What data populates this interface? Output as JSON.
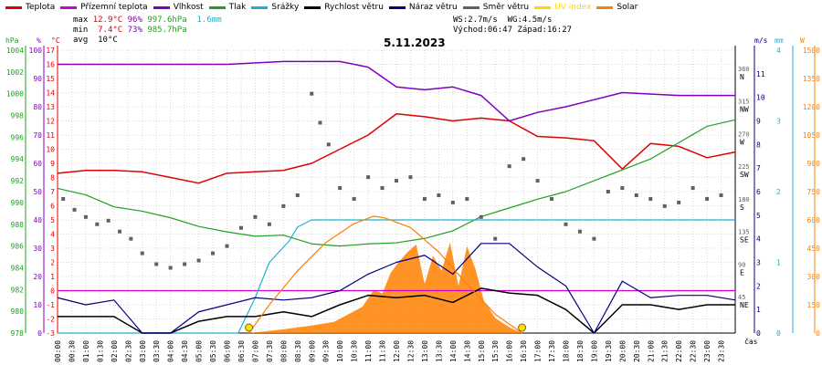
{
  "legend": [
    {
      "label": "Teplota",
      "color": "#e00000"
    },
    {
      "label": "Přízemní teplota",
      "color": "#d000d0"
    },
    {
      "label": "Vlhkost",
      "color": "#8000c0"
    },
    {
      "label": "Tlak",
      "color": "#20a020"
    },
    {
      "label": "Srážky",
      "color": "#20b0d0"
    },
    {
      "label": "Rychlost větru",
      "color": "#000000"
    },
    {
      "label": "Náraz větru",
      "color": "#000080"
    },
    {
      "label": "Směr větru",
      "color": "#606060"
    },
    {
      "label": "UV index",
      "color": "#ffd700"
    },
    {
      "label": "Solar",
      "color": "#ff8000"
    }
  ],
  "stats": {
    "max_label": "max",
    "max_temp": "12.9°C",
    "max_hum": "96%",
    "max_press": "997.6hPa",
    "max_rain": "1.6mm",
    "min_label": "min",
    "min_temp": "7.4°C",
    "min_hum": "73%",
    "min_press": "985.7hPa",
    "avg_label": "avg",
    "avg_temp": "10°C",
    "ws": "WS:2.7m/s",
    "wg": "WG:4.5m/s",
    "sunrise": "Východ:06:47",
    "sunset": "Západ:16:27"
  },
  "axis_units": {
    "hpa": "hPa",
    "pct": "%",
    "degc": "°C",
    "ms": "m/s",
    "mm": "mm",
    "w": "W",
    "cas": "čas"
  },
  "chart_data": {
    "type": "line",
    "title": "5.11.2023",
    "x_ticks": [
      "00:00",
      "00:30",
      "01:00",
      "01:30",
      "02:00",
      "02:30",
      "03:00",
      "03:30",
      "04:00",
      "04:30",
      "05:00",
      "05:30",
      "06:00",
      "06:30",
      "07:00",
      "07:30",
      "08:00",
      "08:30",
      "09:00",
      "09:30",
      "10:00",
      "10:30",
      "11:00",
      "11:30",
      "12:00",
      "12:30",
      "13:00",
      "13:30",
      "14:00",
      "14:30",
      "15:00",
      "15:30",
      "16:00",
      "16:30",
      "17:00",
      "17:30",
      "18:00",
      "18:30",
      "19:00",
      "19:30",
      "20:00",
      "20:30",
      "21:00",
      "21:30",
      "22:00",
      "22:30",
      "23:00",
      "23:30"
    ],
    "axes": {
      "temperature_c": {
        "range": [
          -3,
          17
        ],
        "ticks": [
          -3,
          -2,
          -1,
          0,
          1,
          2,
          3,
          4,
          5,
          6,
          7,
          8,
          9,
          10,
          11,
          12,
          13,
          14,
          15,
          16,
          17
        ]
      },
      "pressure_hpa": {
        "range": [
          978,
          1004
        ],
        "ticks": [
          978,
          980,
          982,
          984,
          986,
          988,
          990,
          992,
          994,
          996,
          998,
          1000,
          1002,
          1004
        ]
      },
      "humidity_pct": {
        "range": [
          0,
          100
        ],
        "ticks": [
          0,
          10,
          20,
          30,
          40,
          50,
          60,
          70,
          80,
          90,
          100
        ]
      },
      "wind_ms": {
        "range": [
          0,
          12
        ],
        "ticks": [
          0,
          1,
          2,
          3,
          4,
          5,
          6,
          7,
          8,
          9,
          10,
          11
        ]
      },
      "direction": {
        "ticks": [
          {
            "deg": 360,
            "label": "N"
          },
          {
            "deg": 315,
            "label": "NW"
          },
          {
            "deg": 270,
            "label": "W"
          },
          {
            "deg": 225,
            "label": "SW"
          },
          {
            "deg": 180,
            "label": "S"
          },
          {
            "deg": 135,
            "label": "SE"
          },
          {
            "deg": 90,
            "label": "E"
          },
          {
            "deg": 45,
            "label": "NE"
          }
        ]
      },
      "rain_mm": {
        "range": [
          0,
          4
        ],
        "ticks": [
          0,
          1,
          2,
          3,
          4
        ]
      },
      "solar_w": {
        "range": [
          0,
          1500
        ],
        "ticks": [
          0,
          150,
          300,
          450,
          600,
          750,
          900,
          1050,
          1200,
          1350,
          1500
        ]
      }
    },
    "series": [
      {
        "name": "Teplota",
        "axis": "temperature_c",
        "color": "#e00000",
        "x": [
          0,
          1,
          2,
          3,
          4,
          5,
          6,
          7,
          8,
          9,
          10,
          11,
          12,
          13,
          14,
          15,
          16,
          17,
          18,
          19,
          20,
          21,
          22,
          23,
          24
        ],
        "values": [
          8.3,
          8.5,
          8.5,
          8.4,
          8.0,
          7.6,
          8.3,
          8.4,
          8.5,
          9.0,
          10.0,
          11.0,
          12.5,
          12.3,
          12.0,
          12.2,
          12.0,
          10.9,
          10.8,
          10.6,
          8.6,
          10.4,
          10.2,
          9.4,
          9.8
        ]
      },
      {
        "name": "Přízemní teplota",
        "axis": "temperature_c",
        "color": "#d000d0",
        "x": [
          0,
          24
        ],
        "values": [
          0,
          0
        ]
      },
      {
        "name": "Vlhkost",
        "axis": "humidity_pct",
        "color": "#8000c0",
        "x": [
          0,
          2,
          4,
          6,
          8,
          10,
          11,
          12,
          13,
          14,
          15,
          16,
          17,
          18,
          20,
          22,
          24
        ],
        "values": [
          95,
          95,
          95,
          95,
          96,
          96,
          94,
          87,
          86,
          87,
          84,
          75,
          78,
          80,
          85,
          84,
          84
        ]
      },
      {
        "name": "Tlak",
        "axis": "pressure_hpa",
        "color": "#20a020",
        "x": [
          0,
          1,
          2,
          3,
          4,
          5,
          6,
          7,
          8,
          9,
          10,
          11,
          12,
          13,
          14,
          15,
          16,
          17,
          18,
          19,
          20,
          21,
          22,
          23,
          24
        ],
        "values": [
          991.3,
          990.7,
          989.6,
          989.2,
          988.6,
          987.8,
          987.3,
          986.9,
          987.0,
          986.2,
          986.0,
          986.2,
          986.3,
          986.7,
          987.4,
          988.7,
          989.5,
          990.3,
          991.0,
          992.0,
          993.0,
          994.0,
          995.5,
          997.0,
          997.6
        ]
      },
      {
        "name": "Srážky",
        "axis": "rain_mm",
        "color": "#20b0d0",
        "x": [
          0,
          6.4,
          7.0,
          7.5,
          8.2,
          8.5,
          9.0,
          24
        ],
        "values": [
          0,
          0,
          0.5,
          1.0,
          1.3,
          1.5,
          1.6,
          1.6
        ]
      },
      {
        "name": "Rychlost větru",
        "axis": "wind_ms",
        "color": "#000000",
        "x": [
          0,
          1,
          2,
          3,
          4,
          5,
          6,
          7,
          8,
          9,
          10,
          11,
          12,
          13,
          14,
          15,
          16,
          17,
          18,
          19,
          20,
          21,
          22,
          23,
          24
        ],
        "values": [
          0.7,
          0.7,
          0.7,
          0.0,
          0.0,
          0.5,
          0.7,
          0.7,
          0.9,
          0.7,
          1.2,
          1.6,
          1.5,
          1.6,
          1.3,
          1.9,
          1.7,
          1.6,
          1.0,
          0.0,
          1.2,
          1.2,
          1.0,
          1.2,
          1.2
        ]
      },
      {
        "name": "Náraz větru",
        "axis": "wind_ms",
        "color": "#000080",
        "x": [
          0,
          1,
          2,
          3,
          4,
          5,
          6,
          7,
          8,
          9,
          10,
          11,
          12,
          13,
          14,
          15,
          16,
          17,
          18,
          19,
          20,
          21,
          22,
          23,
          24
        ],
        "values": [
          1.5,
          1.2,
          1.4,
          0.0,
          0.0,
          0.9,
          1.2,
          1.5,
          1.4,
          1.5,
          1.8,
          2.5,
          3.0,
          3.3,
          2.5,
          3.8,
          3.8,
          2.8,
          2.0,
          0.0,
          2.2,
          1.5,
          1.6,
          1.6,
          1.4
        ]
      },
      {
        "name": "Směr větru",
        "axis": "direction",
        "color": "#606060",
        "type": "scatter",
        "x": [
          0.2,
          0.6,
          1.0,
          1.4,
          1.8,
          2.2,
          2.6,
          3.0,
          3.5,
          4.0,
          4.5,
          5.0,
          5.5,
          6.0,
          6.5,
          7.0,
          7.5,
          8.0,
          8.5,
          9.0,
          9.3,
          9.6,
          10.0,
          10.5,
          11.0,
          11.5,
          12.0,
          12.5,
          13.0,
          13.5,
          14.0,
          14.5,
          15.0,
          15.5,
          16.0,
          16.5,
          17.0,
          17.5,
          18.0,
          18.5,
          19.0,
          19.5,
          20.0,
          20.5,
          21.0,
          21.5,
          22.0,
          22.5,
          23.0,
          23.5
        ],
        "values": [
          185,
          170,
          160,
          150,
          155,
          140,
          130,
          110,
          95,
          90,
          95,
          100,
          110,
          120,
          145,
          160,
          150,
          175,
          190,
          330,
          290,
          260,
          200,
          185,
          215,
          200,
          210,
          215,
          185,
          190,
          180,
          185,
          160,
          130,
          230,
          240,
          210,
          185,
          150,
          140,
          130,
          195,
          200,
          190,
          185,
          175,
          180,
          200,
          185,
          190
        ]
      },
      {
        "name": "Solar",
        "axis": "solar_w",
        "color": "#ff8000",
        "x": [
          6.78,
          7.5,
          8.5,
          9.5,
          10.5,
          11.2,
          11.6,
          12.5,
          13.5,
          14.5,
          15.5,
          16.45
        ],
        "values": [
          0,
          150,
          330,
          480,
          580,
          620,
          610,
          560,
          430,
          260,
          100,
          0
        ]
      }
    ],
    "solar_measured": {
      "x": [
        6.8,
        8.0,
        9.0,
        9.8,
        10.3,
        10.8,
        11.2,
        11.5,
        11.8,
        12.1,
        12.4,
        12.7,
        13.0,
        13.3,
        13.6,
        13.9,
        14.2,
        14.5,
        14.8,
        15.1,
        15.5,
        16.0,
        16.45
      ],
      "values": [
        0,
        20,
        40,
        60,
        100,
        140,
        230,
        210,
        320,
        380,
        430,
        470,
        260,
        410,
        330,
        480,
        250,
        460,
        340,
        170,
        80,
        30,
        0
      ]
    },
    "reference_line": {
      "axis": "temperature_c",
      "value": 0,
      "color": "#d000d0"
    }
  }
}
